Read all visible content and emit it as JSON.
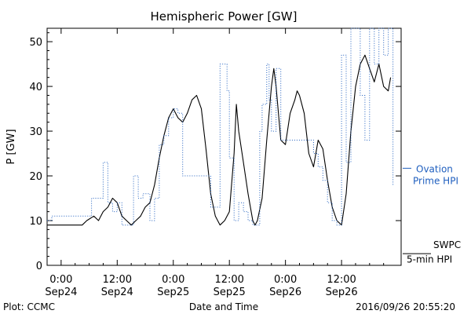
{
  "chart_data": {
    "type": "line",
    "title": "Hemispheric Power [GW]",
    "ylabel": "P [GW]",
    "xlabel": "Date and Time",
    "ylim": [
      0,
      53
    ],
    "xlim": [
      "2016-09-23T21:00",
      "2016-09-27T00:45"
    ],
    "grid": false,
    "y_ticks": [
      0,
      10,
      20,
      30,
      40,
      50
    ],
    "x_ticks": [
      {
        "t": "2016-09-24T00:00",
        "line1": "0:00",
        "line2": "Sep24"
      },
      {
        "t": "2016-09-24T12:00",
        "line1": "12:00",
        "line2": "Sep24"
      },
      {
        "t": "2016-09-25T00:00",
        "line1": "0:00",
        "line2": "Sep25"
      },
      {
        "t": "2016-09-25T12:00",
        "line1": "12:00",
        "line2": "Sep25"
      },
      {
        "t": "2016-09-26T00:00",
        "line1": "0:00",
        "line2": "Sep26"
      },
      {
        "t": "2016-09-26T12:00",
        "line1": "12:00",
        "line2": "Sep26"
      }
    ],
    "series": [
      {
        "name": "SWPC 5-min HPI",
        "legend_lines": [
          "SWPC",
          "5-min HPI"
        ],
        "color": "#000000",
        "style": "solid",
        "points": [
          [
            "2016-09-23T21:00",
            9
          ],
          [
            "2016-09-24T04:30",
            9
          ],
          [
            "2016-09-24T05:30",
            10
          ],
          [
            "2016-09-24T07:00",
            11
          ],
          [
            "2016-09-24T08:00",
            10
          ],
          [
            "2016-09-24T09:00",
            12
          ],
          [
            "2016-09-24T10:00",
            13
          ],
          [
            "2016-09-24T11:00",
            15
          ],
          [
            "2016-09-24T12:00",
            14
          ],
          [
            "2016-09-24T13:00",
            11
          ],
          [
            "2016-09-24T14:00",
            10
          ],
          [
            "2016-09-24T15:00",
            9
          ],
          [
            "2016-09-24T16:00",
            10
          ],
          [
            "2016-09-24T17:00",
            11
          ],
          [
            "2016-09-24T18:00",
            13
          ],
          [
            "2016-09-24T19:00",
            14
          ],
          [
            "2016-09-24T20:00",
            18
          ],
          [
            "2016-09-24T21:00",
            24
          ],
          [
            "2016-09-24T22:00",
            29
          ],
          [
            "2016-09-24T23:00",
            33
          ],
          [
            "2016-09-25T00:00",
            35
          ],
          [
            "2016-09-25T01:00",
            33
          ],
          [
            "2016-09-25T02:00",
            32
          ],
          [
            "2016-09-25T03:00",
            34
          ],
          [
            "2016-09-25T04:00",
            37
          ],
          [
            "2016-09-25T05:00",
            38
          ],
          [
            "2016-09-25T06:00",
            35
          ],
          [
            "2016-09-25T07:00",
            26
          ],
          [
            "2016-09-25T08:00",
            16
          ],
          [
            "2016-09-25T09:00",
            11
          ],
          [
            "2016-09-25T10:00",
            9
          ],
          [
            "2016-09-25T11:00",
            10
          ],
          [
            "2016-09-25T12:00",
            12
          ],
          [
            "2016-09-25T13:00",
            25
          ],
          [
            "2016-09-25T13:30",
            36
          ],
          [
            "2016-09-25T14:00",
            30
          ],
          [
            "2016-09-25T15:00",
            23
          ],
          [
            "2016-09-25T16:00",
            16
          ],
          [
            "2016-09-25T17:00",
            10
          ],
          [
            "2016-09-25T17:30",
            9
          ],
          [
            "2016-09-25T18:00",
            10
          ],
          [
            "2016-09-25T19:00",
            15
          ],
          [
            "2016-09-25T20:00",
            28
          ],
          [
            "2016-09-25T21:00",
            40
          ],
          [
            "2016-09-25T21:30",
            44
          ],
          [
            "2016-09-25T22:00",
            40
          ],
          [
            "2016-09-25T23:00",
            28
          ],
          [
            "2016-09-26T00:00",
            27
          ],
          [
            "2016-09-26T01:00",
            34
          ],
          [
            "2016-09-26T02:00",
            37
          ],
          [
            "2016-09-26T02:30",
            39
          ],
          [
            "2016-09-26T03:00",
            38
          ],
          [
            "2016-09-26T04:00",
            34
          ],
          [
            "2016-09-26T05:00",
            25
          ],
          [
            "2016-09-26T06:00",
            22
          ],
          [
            "2016-09-26T07:00",
            28
          ],
          [
            "2016-09-26T08:00",
            26
          ],
          [
            "2016-09-26T09:00",
            19
          ],
          [
            "2016-09-26T10:00",
            13
          ],
          [
            "2016-09-26T11:00",
            10
          ],
          [
            "2016-09-26T12:00",
            9
          ],
          [
            "2016-09-26T13:00",
            16
          ],
          [
            "2016-09-26T14:00",
            30
          ],
          [
            "2016-09-26T15:00",
            40
          ],
          [
            "2016-09-26T16:00",
            45
          ],
          [
            "2016-09-26T17:00",
            47
          ],
          [
            "2016-09-26T18:00",
            44
          ],
          [
            "2016-09-26T19:00",
            41
          ],
          [
            "2016-09-26T20:00",
            45
          ],
          [
            "2016-09-26T21:00",
            40
          ],
          [
            "2016-09-26T22:00",
            39
          ],
          [
            "2016-09-26T22:30",
            42
          ]
        ]
      },
      {
        "name": "Ovation Prime HPI",
        "legend_lines": [
          "Ovation",
          "Prime HPI"
        ],
        "color": "#1f5fbf",
        "style": "dotted",
        "points": [
          [
            "2016-09-23T21:00",
            10
          ],
          [
            "2016-09-23T22:00",
            11
          ],
          [
            "2016-09-24T05:00",
            11
          ],
          [
            "2016-09-24T06:30",
            15
          ],
          [
            "2016-09-24T09:00",
            23
          ],
          [
            "2016-09-24T10:00",
            14
          ],
          [
            "2016-09-24T11:00",
            12
          ],
          [
            "2016-09-24T12:00",
            14
          ],
          [
            "2016-09-24T13:00",
            9
          ],
          [
            "2016-09-24T15:00",
            9
          ],
          [
            "2016-09-24T15:30",
            20
          ],
          [
            "2016-09-24T16:30",
            15
          ],
          [
            "2016-09-24T17:30",
            16
          ],
          [
            "2016-09-24T19:00",
            10
          ],
          [
            "2016-09-24T20:00",
            15
          ],
          [
            "2016-09-24T21:00",
            27
          ],
          [
            "2016-09-24T22:00",
            29
          ],
          [
            "2016-09-24T23:00",
            33
          ],
          [
            "2016-09-25T00:00",
            35
          ],
          [
            "2016-09-25T01:00",
            34
          ],
          [
            "2016-09-25T02:00",
            20
          ],
          [
            "2016-09-25T05:00",
            20
          ],
          [
            "2016-09-25T08:00",
            13
          ],
          [
            "2016-09-25T09:00",
            13
          ],
          [
            "2016-09-25T10:00",
            45
          ],
          [
            "2016-09-25T11:00",
            45
          ],
          [
            "2016-09-25T11:30",
            39
          ],
          [
            "2016-09-25T12:00",
            24
          ],
          [
            "2016-09-25T13:00",
            10
          ],
          [
            "2016-09-25T14:00",
            14
          ],
          [
            "2016-09-25T15:00",
            12
          ],
          [
            "2016-09-25T16:00",
            10
          ],
          [
            "2016-09-25T17:00",
            9
          ],
          [
            "2016-09-25T18:00",
            9
          ],
          [
            "2016-09-25T18:30",
            30
          ],
          [
            "2016-09-25T19:00",
            36
          ],
          [
            "2016-09-25T20:00",
            45
          ],
          [
            "2016-09-25T20:30",
            37
          ],
          [
            "2016-09-25T21:00",
            30
          ],
          [
            "2016-09-25T22:00",
            44
          ],
          [
            "2016-09-25T23:00",
            28
          ],
          [
            "2016-09-26T01:00",
            28
          ],
          [
            "2016-09-26T04:00",
            28
          ],
          [
            "2016-09-26T05:00",
            28
          ],
          [
            "2016-09-26T06:00",
            25
          ],
          [
            "2016-09-26T07:00",
            22
          ],
          [
            "2016-09-26T08:00",
            19
          ],
          [
            "2016-09-26T09:00",
            14
          ],
          [
            "2016-09-26T10:00",
            10
          ],
          [
            "2016-09-26T11:00",
            9
          ],
          [
            "2016-09-26T12:00",
            47
          ],
          [
            "2016-09-26T13:00",
            23
          ],
          [
            "2016-09-26T14:00",
            53
          ],
          [
            "2016-09-26T15:00",
            53
          ],
          [
            "2016-09-26T16:00",
            38
          ],
          [
            "2016-09-26T17:00",
            28
          ],
          [
            "2016-09-26T18:00",
            53
          ],
          [
            "2016-09-26T19:00",
            45
          ],
          [
            "2016-09-26T20:00",
            53
          ],
          [
            "2016-09-26T21:00",
            47
          ],
          [
            "2016-09-26T22:00",
            53
          ],
          [
            "2016-09-26T23:00",
            18
          ]
        ]
      }
    ]
  },
  "footer": {
    "left": "Plot: CCMC",
    "timestamp": "2016/09/26 20:55:20"
  }
}
